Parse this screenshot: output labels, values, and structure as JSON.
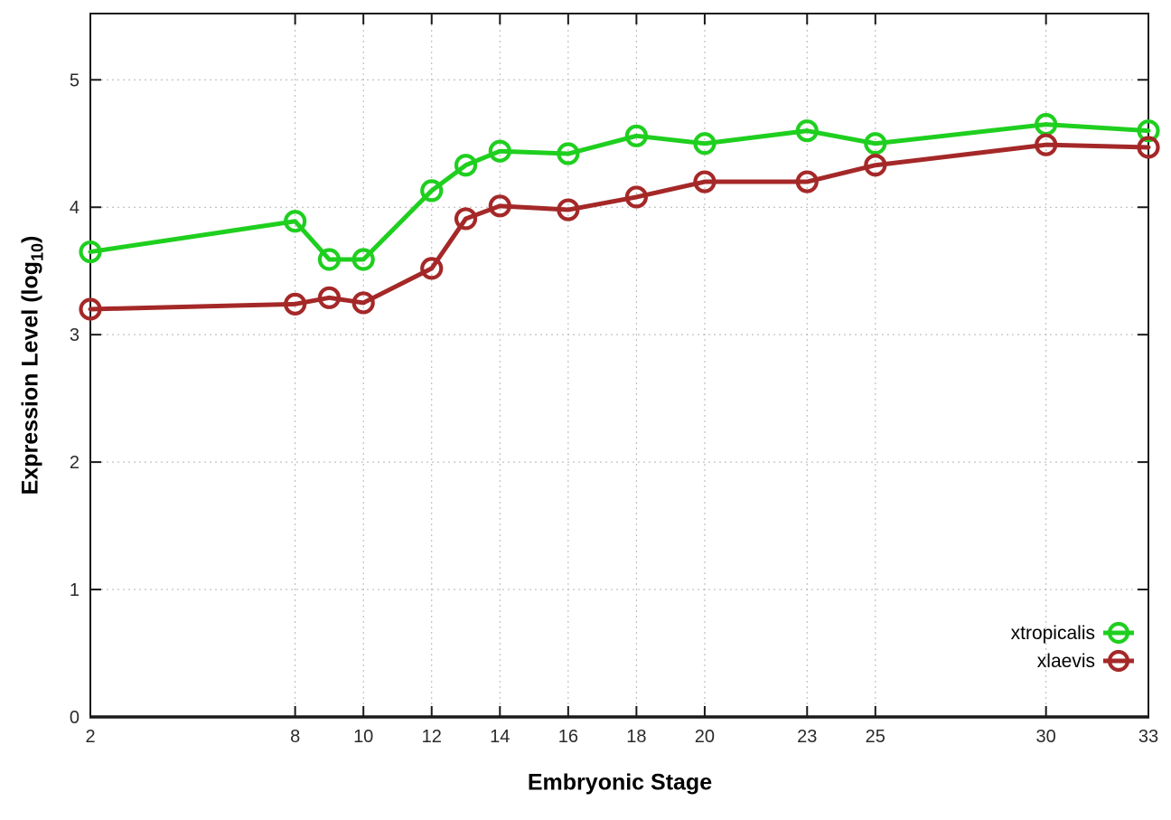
{
  "chart_data": {
    "type": "line",
    "title": "",
    "xlabel": "Embryonic Stage",
    "ylabel": "Expression Level (log10)",
    "x": [
      2,
      8,
      9,
      10,
      12,
      13,
      14,
      16,
      18,
      20,
      23,
      25,
      30,
      33
    ],
    "series": [
      {
        "name": "xtropicalis",
        "color": "#1fcf1f",
        "values": [
          3.65,
          3.89,
          3.59,
          3.59,
          4.13,
          4.33,
          4.44,
          4.42,
          4.56,
          4.5,
          4.6,
          4.5,
          4.65,
          4.6
        ]
      },
      {
        "name": "xlaevis",
        "color": "#a52828",
        "values": [
          3.2,
          3.24,
          3.29,
          3.25,
          3.52,
          3.91,
          4.01,
          3.98,
          4.08,
          4.2,
          4.2,
          4.33,
          4.49,
          4.47
        ]
      }
    ],
    "xlim": [
      2,
      33
    ],
    "ylim": [
      0,
      5.52
    ],
    "xticks": [
      2,
      8,
      10,
      12,
      14,
      16,
      18,
      20,
      23,
      25,
      30,
      33
    ],
    "yticks": [
      0,
      1,
      2,
      3,
      4,
      5
    ],
    "grid": true,
    "grid_style": "dotted",
    "marker": "open-circle",
    "legend_position": "bottom-right-inside",
    "legend": [
      "xtropicalis",
      "xlaevis"
    ]
  },
  "labels": {
    "xlabel": "Embryonic Stage",
    "ylabel_pre": "Expression Level (log",
    "ylabel_sub": "10",
    "ylabel_post": ")"
  },
  "colors": {
    "border": "#1a1a1a",
    "grid": "#b4b4b4",
    "tick_text": "#2a2a2a",
    "background": "#ffffff"
  }
}
